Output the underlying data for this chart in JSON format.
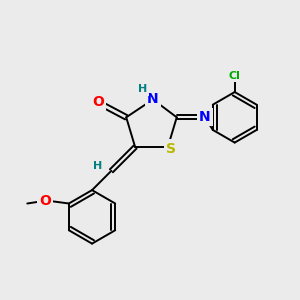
{
  "bg_color": "#ebebeb",
  "bond_color": "#000000",
  "atom_colors": {
    "O": "#ff0000",
    "N": "#0000ff",
    "S": "#b8b800",
    "Cl": "#00aa00",
    "H_label": "#008080",
    "C": "#000000"
  },
  "font_size_atoms": 10,
  "font_size_small": 8,
  "line_width": 1.4,
  "figsize": [
    3.0,
    3.0
  ],
  "dpi": 100
}
